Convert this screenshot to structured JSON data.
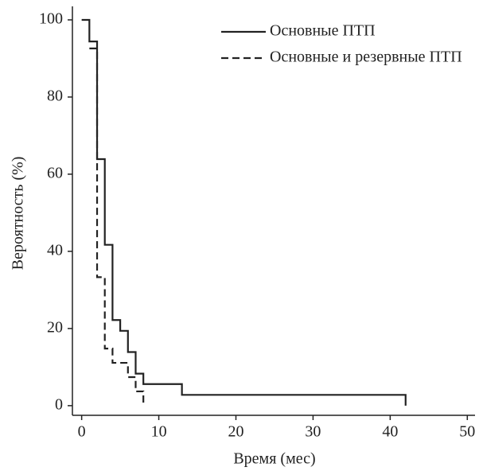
{
  "chart_data": {
    "type": "step",
    "x_label": "Время (мес)",
    "y_label": "Вероятность (%)",
    "xlim": [
      -1.2,
      51
    ],
    "ylim": [
      -2.5,
      103.5
    ],
    "xticks": [
      0,
      10,
      20,
      30,
      40,
      50
    ],
    "yticks": [
      0,
      20,
      40,
      60,
      80,
      100
    ],
    "legend": "upper right",
    "series": [
      {
        "name": "Основные ПТП",
        "color": "#222222",
        "dash": "solid",
        "x": [
          0,
          1,
          2,
          3,
          4,
          5,
          6,
          7,
          8,
          13,
          42
        ],
        "values": [
          100,
          94.4,
          63.9,
          41.7,
          22.2,
          19.4,
          13.9,
          8.3,
          5.6,
          2.8,
          0
        ]
      },
      {
        "name": "Основные и резервные ПТП",
        "color": "#222222",
        "dash": "dashed",
        "x": [
          1,
          2,
          3,
          4,
          6,
          7,
          8
        ],
        "values": [
          92.6,
          33.3,
          14.8,
          11.1,
          7.4,
          3.7,
          0
        ]
      }
    ]
  }
}
